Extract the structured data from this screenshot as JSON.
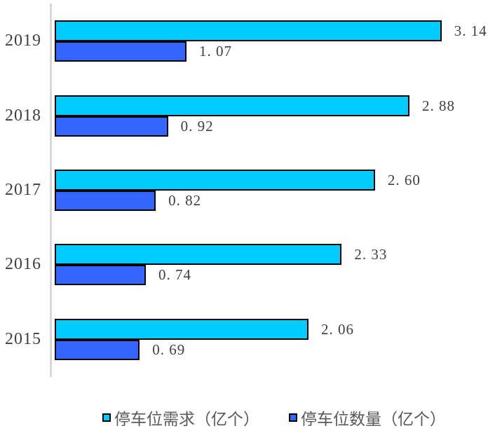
{
  "chart_data": {
    "type": "bar",
    "orientation": "horizontal",
    "title": "",
    "xlabel": "",
    "ylabel": "",
    "categories": [
      "2019",
      "2018",
      "2017",
      "2016",
      "2015"
    ],
    "series": [
      {
        "name": "停车位需求（亿个）",
        "color": "#00CCFF",
        "values": [
          3.14,
          2.88,
          2.6,
          2.33,
          2.06
        ],
        "labels": [
          "3. 14",
          "2. 88",
          "2. 60",
          "2. 33",
          "2. 06"
        ]
      },
      {
        "name": "停车位数量（亿个）",
        "color": "#3366FF",
        "values": [
          1.07,
          0.92,
          0.82,
          0.74,
          0.69
        ],
        "labels": [
          "1. 07",
          "0. 92",
          "0. 82",
          "0. 74",
          "0. 69"
        ]
      }
    ],
    "xlim": [
      0,
      3.5
    ],
    "grid": false,
    "legend_position": "bottom",
    "bar_border_color": "#000000",
    "axis_line_color": "#D8D8D8",
    "label_color": "#3F3F3F"
  },
  "legend": {
    "items": [
      {
        "label": "停车位需求（亿个）",
        "color": "#00CCFF"
      },
      {
        "label": "停车位数量（亿个）",
        "color": "#3366FF"
      }
    ]
  }
}
